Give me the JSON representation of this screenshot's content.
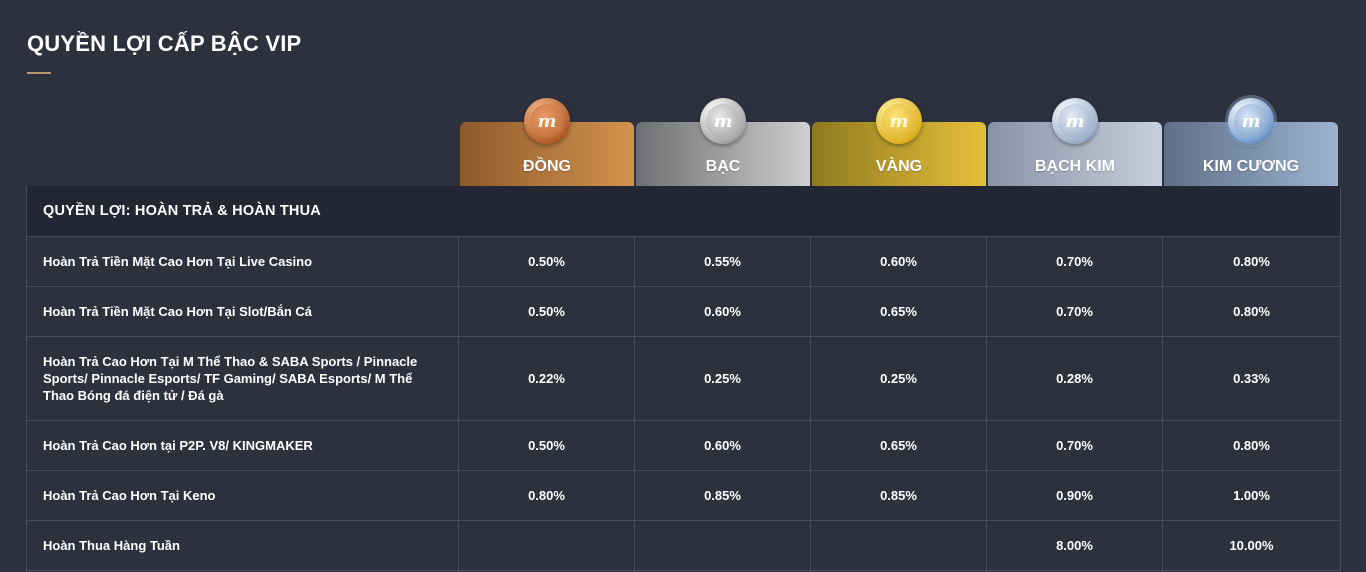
{
  "page": {
    "title": "QUYỀN LỢI CẤP BẬC VIP"
  },
  "tiers": [
    {
      "label": "ĐỒNG",
      "medal_glyph": "m"
    },
    {
      "label": "BẠC",
      "medal_glyph": "m"
    },
    {
      "label": "VÀNG",
      "medal_glyph": "m"
    },
    {
      "label": "BẠCH KIM",
      "medal_glyph": "m"
    },
    {
      "label": "KIM CƯƠNG",
      "medal_glyph": "m"
    }
  ],
  "colors": {
    "background": "#2d313e",
    "accent_underline": "#b79a67",
    "section_header_bg": "#232734"
  },
  "section": {
    "title": "QUYỀN LỢI: HOÀN TRẢ & HOÀN THUA",
    "rows": [
      {
        "label": "Hoàn Trả Tiền Mặt Cao Hơn Tại Live Casino",
        "values": [
          "0.50%",
          "0.55%",
          "0.60%",
          "0.70%",
          "0.80%"
        ]
      },
      {
        "label": "Hoàn Trả Tiền Mặt Cao Hơn Tại Slot/Bắn Cá",
        "values": [
          "0.50%",
          "0.60%",
          "0.65%",
          "0.70%",
          "0.80%"
        ]
      },
      {
        "label": "Hoàn Trả Cao Hơn Tại M Thể Thao & SABA Sports / Pinnacle Sports/ Pinnacle Esports/ TF Gaming/ SABA Esports/ M Thể Thao Bóng đá điện tử / Đá gà",
        "values": [
          "0.22%",
          "0.25%",
          "0.25%",
          "0.28%",
          "0.33%"
        ]
      },
      {
        "label": "Hoàn Trả Cao Hơn tại P2P. V8/ KINGMAKER",
        "values": [
          "0.50%",
          "0.60%",
          "0.65%",
          "0.70%",
          "0.80%"
        ]
      },
      {
        "label": "Hoàn Trả Cao Hơn Tại Keno",
        "values": [
          "0.80%",
          "0.85%",
          "0.85%",
          "0.90%",
          "1.00%"
        ]
      },
      {
        "label": "Hoàn Thua Hàng Tuần",
        "values": [
          "",
          "",
          "",
          "8.00%",
          "10.00%"
        ]
      }
    ]
  }
}
